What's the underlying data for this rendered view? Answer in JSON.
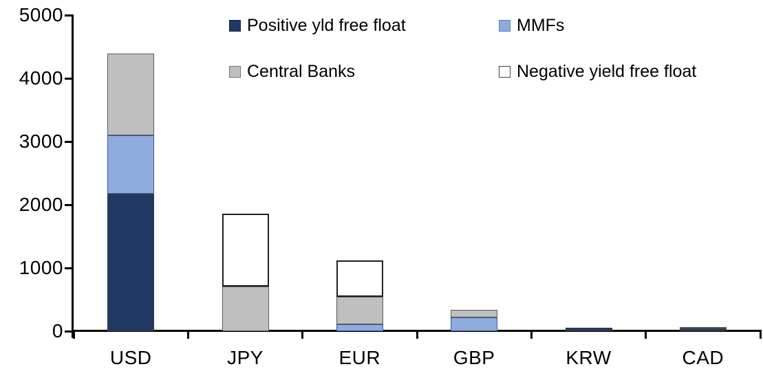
{
  "chart_data": {
    "type": "bar",
    "stacked": true,
    "title": "",
    "xlabel": "",
    "ylabel": "",
    "categories": [
      "USD",
      "JPY",
      "EUR",
      "GBP",
      "KRW",
      "CAD"
    ],
    "series": [
      {
        "name": "Positive yld free float",
        "color": "#1F3864",
        "border": "#3B3B3B",
        "values": [
          2170,
          0,
          0,
          0,
          50,
          40
        ]
      },
      {
        "name": "MMFs",
        "color": "#8FAADC",
        "border": "#3B5C9E",
        "values": [
          925,
          0,
          110,
          215,
          0,
          0
        ]
      },
      {
        "name": "Central Banks",
        "color": "#BFBFBF",
        "border": "#595959",
        "values": [
          1295,
          705,
          435,
          120,
          0,
          30
        ]
      },
      {
        "name": "Negative yield free float",
        "color": "#FFFFFF",
        "border": "#1F1F1F",
        "values": [
          0,
          1150,
          575,
          0,
          0,
          0
        ]
      }
    ],
    "totals": [
      4390,
      1855,
      1120,
      335,
      50,
      70
    ],
    "ylim": [
      0,
      5000
    ],
    "yticks": [
      0,
      1000,
      2000,
      3000,
      4000,
      5000
    ],
    "grid": false,
    "legend_position": "top",
    "legend_rows": [
      [
        "Positive yld free float",
        "MMFs"
      ],
      [
        "Central Banks",
        "Negative yield free float"
      ]
    ]
  }
}
